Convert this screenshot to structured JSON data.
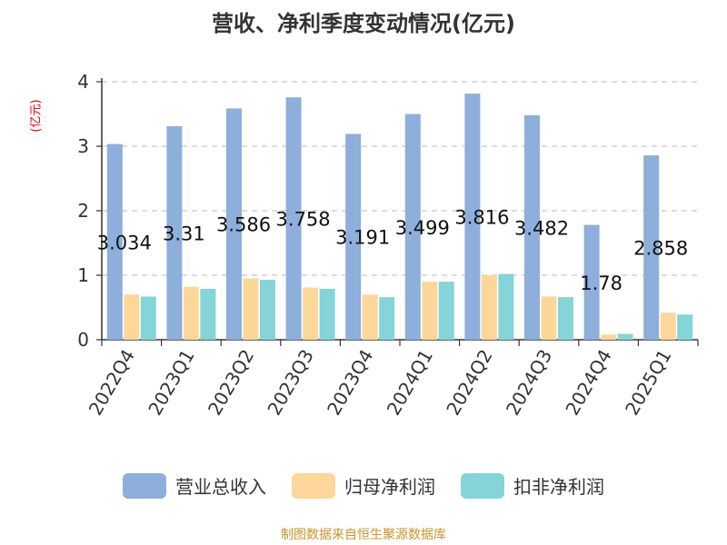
{
  "chart_data": {
    "type": "bar",
    "title": "营收、净利季度变动情况(亿元)",
    "ylabel": "(亿元)",
    "ylim": [
      0,
      4
    ],
    "yticks": [
      0,
      1,
      2,
      3,
      4
    ],
    "grid": true,
    "legend_position": "bottom",
    "categories": [
      "2022Q4",
      "2023Q1",
      "2023Q2",
      "2023Q3",
      "2023Q4",
      "2024Q1",
      "2024Q2",
      "2024Q3",
      "2024Q4",
      "2025Q1"
    ],
    "series": [
      {
        "name": "营业总收入",
        "color": "#8eaedb",
        "values": [
          3.034,
          3.31,
          3.586,
          3.758,
          3.191,
          3.499,
          3.816,
          3.482,
          1.78,
          2.858
        ],
        "labels": [
          "3.034",
          "3.31",
          "3.586",
          "3.758",
          "3.191",
          "3.499",
          "3.816",
          "3.482",
          "1.78",
          "2.858"
        ]
      },
      {
        "name": "归母净利润",
        "color": "#fdd79a",
        "values": [
          0.7,
          0.82,
          0.95,
          0.81,
          0.7,
          0.9,
          1.0,
          0.67,
          0.08,
          0.42
        ]
      },
      {
        "name": "扣非净利润",
        "color": "#85d4d7",
        "values": [
          0.67,
          0.79,
          0.93,
          0.79,
          0.66,
          0.9,
          1.02,
          0.66,
          0.09,
          0.39
        ]
      }
    ]
  },
  "footer": {
    "source": "制图数据来自恒生聚源数据库"
  }
}
